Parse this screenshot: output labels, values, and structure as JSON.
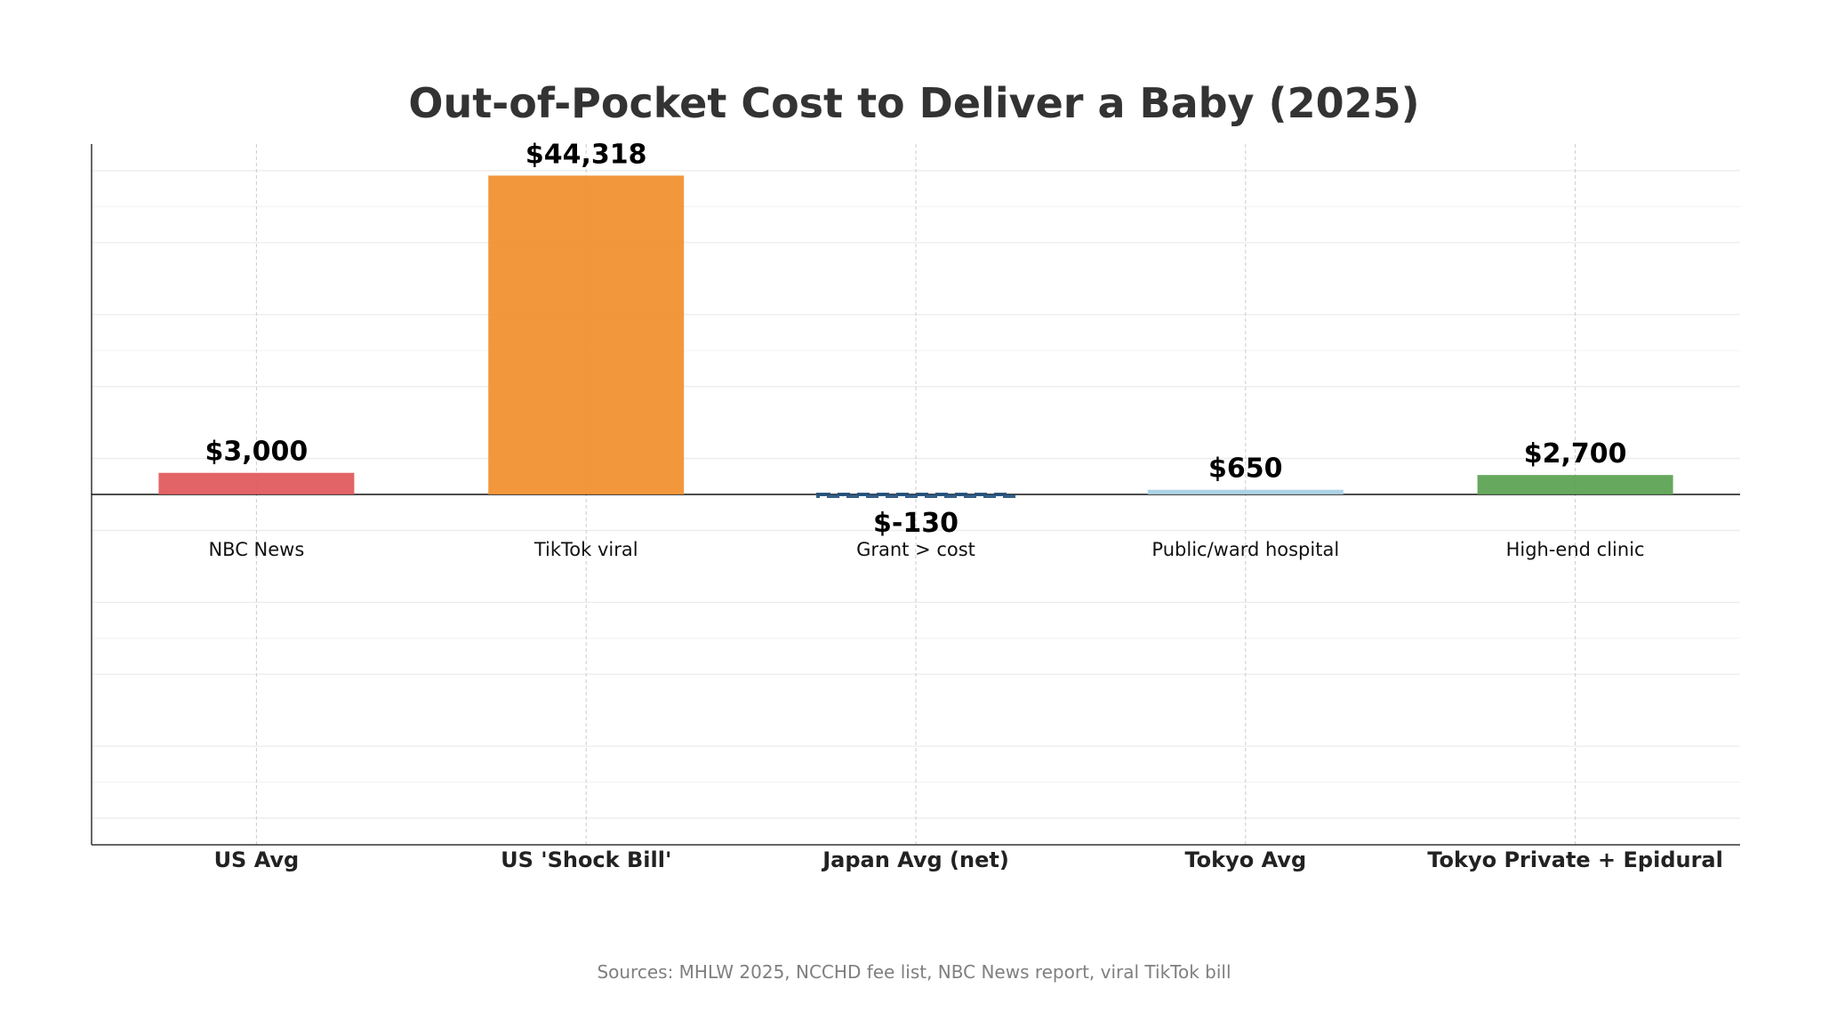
{
  "chart_data": {
    "type": "bar",
    "title": "Out-of-Pocket Cost to Deliver a Baby (2025)",
    "xlabel": "",
    "ylabel": "",
    "categories": [
      "US Avg",
      "US 'Shock Bill'",
      "Japan Avg (net)",
      "Tokyo Avg",
      "Tokyo Private + Epidural"
    ],
    "values": [
      3000,
      44318,
      -130,
      650,
      2700
    ],
    "value_labels": [
      "$3,000",
      "$44,318",
      "$-130",
      "$650",
      "$2,700"
    ],
    "annotations": [
      "NBC News",
      "TikTok viral",
      "Grant > cost",
      "Public/ward hospital",
      "High-end clinic"
    ],
    "colors": [
      "#e15759",
      "#f28e2b",
      "#1f4e79",
      "#a6cee3",
      "#59a14f"
    ],
    "bar_styles": [
      "solid",
      "solid",
      "dashed-outline",
      "solid",
      "solid"
    ],
    "ylim": [
      -48700,
      48700
    ],
    "grid": true,
    "y_tick_labels_shown": false,
    "source": "Sources: MHLW 2025, NCCHD fee list, NBC News report, viral TikTok bill"
  }
}
